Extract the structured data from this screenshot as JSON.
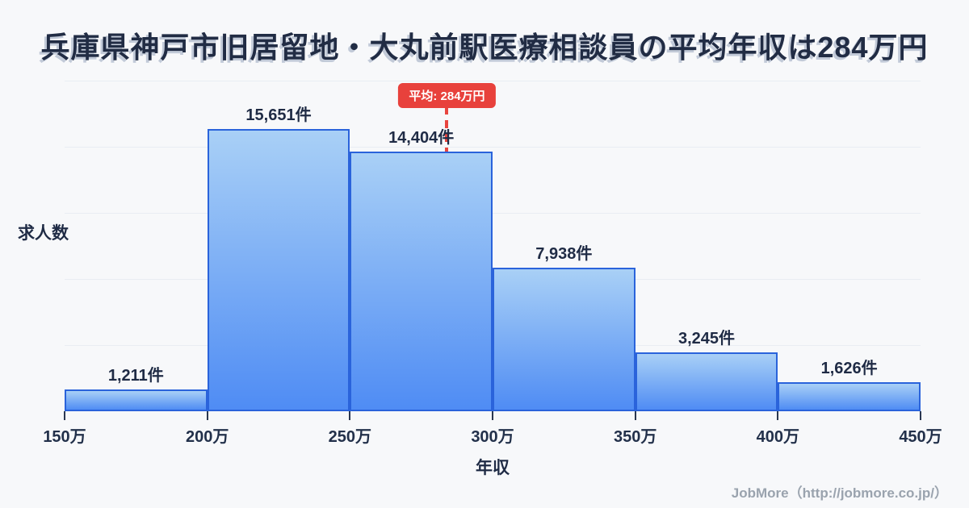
{
  "title": {
    "text": "兵庫県神戸市旧居留地・大丸前駅医療相談員の平均年収は284万円",
    "color": "#212c44"
  },
  "chart_data": {
    "type": "bar",
    "title": "兵庫県神戸市旧居留地・大丸前駅医療相談員の平均年収は284万円",
    "xlabel": "年収",
    "ylabel": "求人数",
    "xlim_万円": [
      150,
      450
    ],
    "ylim": [
      0,
      18330
    ],
    "grid": true,
    "bin_width_万円": 50,
    "x_ticks": [
      "150万",
      "200万",
      "250万",
      "300万",
      "350万",
      "400万",
      "450万"
    ],
    "bars": [
      {
        "range": "150万-200万",
        "value": 1211,
        "label": "1,211件"
      },
      {
        "range": "200万-250万",
        "value": 15651,
        "label": "15,651件"
      },
      {
        "range": "250万-300万",
        "value": 14404,
        "label": "14,404件"
      },
      {
        "range": "300万-350万",
        "value": 7938,
        "label": "7,938件"
      },
      {
        "range": "350万-400万",
        "value": 3245,
        "label": "3,245件"
      },
      {
        "range": "400万-450万",
        "value": 1626,
        "label": "1,626件"
      }
    ],
    "average": {
      "value_万円": 284,
      "label": "平均: 284万円"
    }
  },
  "colors": {
    "background": "#f7f8fa",
    "bar_fill_top": "#a9d0f6",
    "bar_fill_bottom": "#4f8cf4",
    "bar_border": "#2a63db",
    "accent_red": "#e8413c",
    "text_dark": "#1f2b45",
    "grid_line": "#e9edf3",
    "footer_gray": "#9aa3ae"
  },
  "footer": {
    "text": "JobMore（http://jobmore.co.jp/）"
  }
}
